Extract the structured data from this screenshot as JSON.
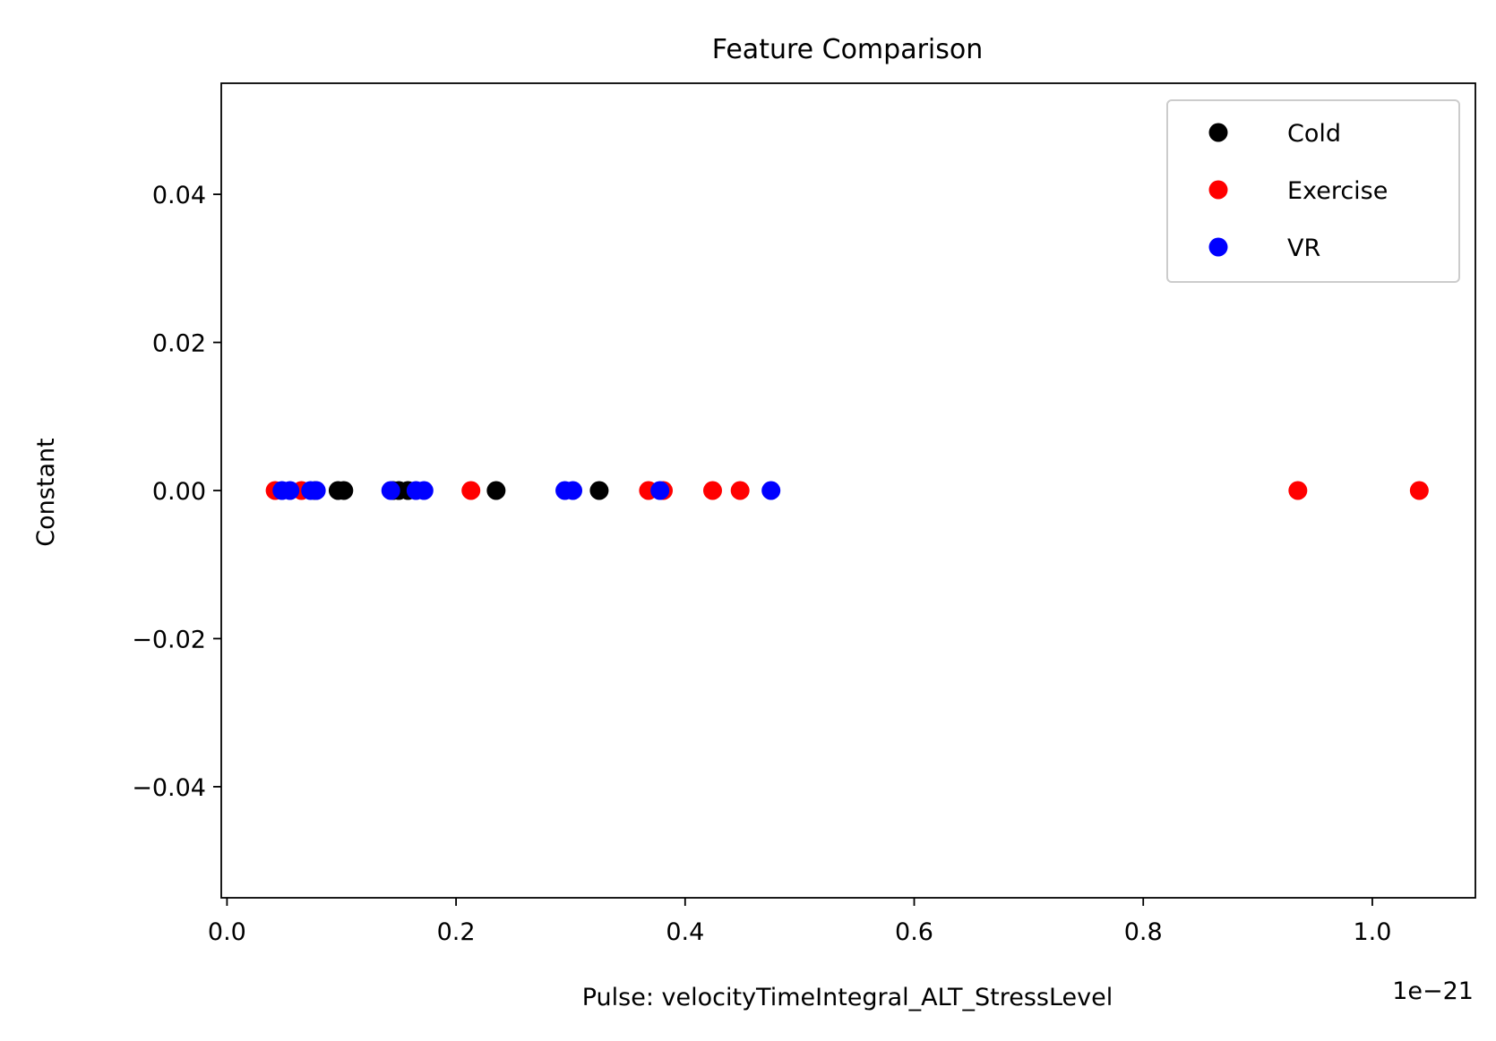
{
  "chart_data": {
    "type": "scatter",
    "title": "Feature Comparison",
    "xlabel": "Pulse: velocityTimeIntegral_ALT_StressLevel",
    "ylabel": "Constant",
    "x_offset_label": "1e−21",
    "xlim": [
      -0.005,
      1.09
    ],
    "ylim": [
      -0.055,
      0.055
    ],
    "x_ticks": [
      {
        "value": 0.0,
        "label": "0.0"
      },
      {
        "value": 0.2,
        "label": "0.2"
      },
      {
        "value": 0.4,
        "label": "0.4"
      },
      {
        "value": 0.6,
        "label": "0.6"
      },
      {
        "value": 0.8,
        "label": "0.8"
      },
      {
        "value": 1.0,
        "label": "1.0"
      }
    ],
    "y_ticks": [
      {
        "value": 0.04,
        "label": "0.04"
      },
      {
        "value": 0.02,
        "label": "0.02"
      },
      {
        "value": 0.0,
        "label": "0.00"
      },
      {
        "value": -0.02,
        "label": "−0.02"
      },
      {
        "value": -0.04,
        "label": "−0.04"
      }
    ],
    "grid": false,
    "legend_position": "top-right",
    "series": [
      {
        "name": "Cold",
        "color": "#000000",
        "x": [
          0.077,
          0.097,
          0.102,
          0.145,
          0.15,
          0.158,
          0.235,
          0.325
        ],
        "y": [
          0,
          0,
          0,
          0,
          0,
          0,
          0,
          0
        ]
      },
      {
        "name": "Exercise",
        "color": "#ff0000",
        "x": [
          0.042,
          0.065,
          0.213,
          0.368,
          0.381,
          0.424,
          0.448,
          0.935,
          1.041
        ],
        "y": [
          0,
          0,
          0,
          0,
          0,
          0,
          0,
          0,
          0
        ]
      },
      {
        "name": "VR",
        "color": "#0000ff",
        "x": [
          0.048,
          0.055,
          0.073,
          0.078,
          0.143,
          0.165,
          0.172,
          0.295,
          0.302,
          0.378,
          0.475
        ],
        "y": [
          0,
          0,
          0,
          0,
          0,
          0,
          0,
          0,
          0,
          0,
          0
        ]
      }
    ]
  }
}
